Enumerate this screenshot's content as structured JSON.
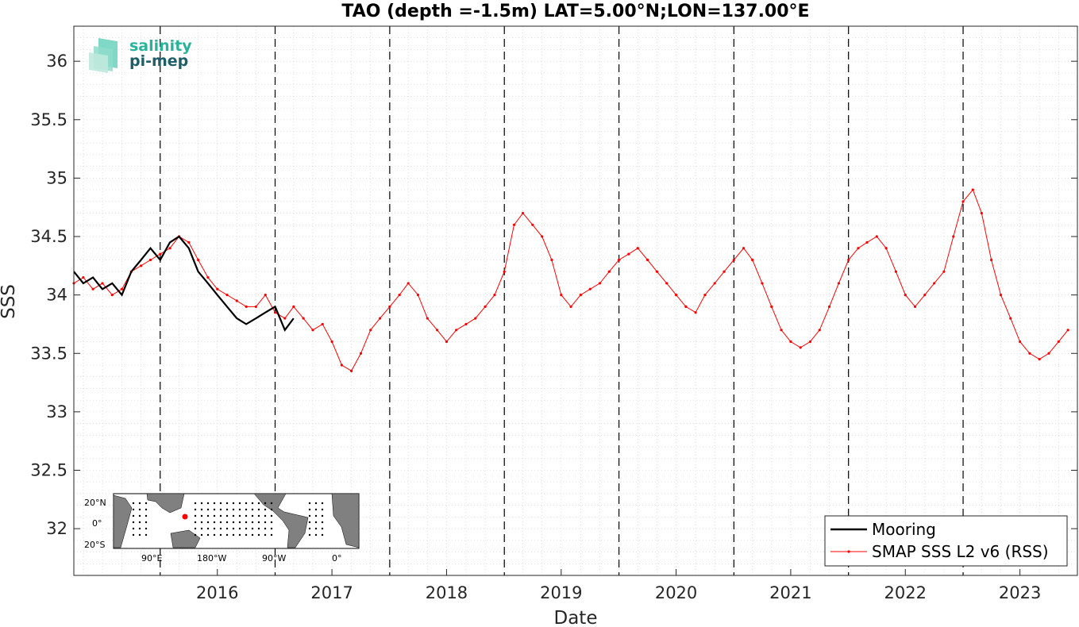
{
  "chart_data": {
    "type": "line",
    "title": "TAO (depth =-1.5m) LAT=5.00°N;LON=137.00°E",
    "xlabel": "Date",
    "ylabel": "SSS",
    "xlim": [
      "2015-04-01",
      "2023-12-31"
    ],
    "ylim": [
      31.6,
      36.3
    ],
    "x_ticks": [
      "2016",
      "2017",
      "2018",
      "2019",
      "2020",
      "2021",
      "2022",
      "2023"
    ],
    "y_ticks": [
      "32",
      "32.5",
      "33",
      "33.5",
      "34",
      "34.5",
      "35",
      "35.5",
      "36"
    ],
    "year_boundaries": [
      "2016-01-01",
      "2017-01-01",
      "2018-01-01",
      "2019-01-01",
      "2020-01-01",
      "2021-01-01",
      "2022-01-01",
      "2023-01-01"
    ],
    "grid": "minor dotted",
    "legend_position": "bottom-right",
    "series": [
      {
        "name": "Mooring",
        "color": "#000000",
        "style": "thick line",
        "x": [
          "2015-04-01",
          "2015-05-01",
          "2015-06-01",
          "2015-07-01",
          "2015-08-01",
          "2015-09-01",
          "2015-10-01",
          "2015-11-01",
          "2015-12-01",
          "2016-01-01",
          "2016-02-01",
          "2016-03-01",
          "2016-04-01",
          "2016-05-01",
          "2016-06-01",
          "2016-07-01",
          "2016-08-01",
          "2016-09-01",
          "2016-10-01",
          "2016-11-01",
          "2016-12-01",
          "2017-01-01",
          "2017-02-01",
          "2017-03-01"
        ],
        "y": [
          34.2,
          34.1,
          34.15,
          34.05,
          34.1,
          34.0,
          34.2,
          34.3,
          34.4,
          34.3,
          34.45,
          34.5,
          34.4,
          34.2,
          34.1,
          34.0,
          33.9,
          33.8,
          33.75,
          33.8,
          33.85,
          33.9,
          33.7,
          33.8
        ]
      },
      {
        "name": "SMAP SSS L2 v6 (RSS)",
        "color": "#ff0000",
        "style": "thin line with dot markers",
        "x": [
          "2015-04-01",
          "2015-05-01",
          "2015-06-01",
          "2015-07-01",
          "2015-08-01",
          "2015-09-01",
          "2015-10-01",
          "2015-11-01",
          "2015-12-01",
          "2016-01-01",
          "2016-02-01",
          "2016-03-01",
          "2016-04-01",
          "2016-05-01",
          "2016-06-01",
          "2016-07-01",
          "2016-08-01",
          "2016-09-01",
          "2016-10-01",
          "2016-11-01",
          "2016-12-01",
          "2017-01-01",
          "2017-02-01",
          "2017-03-01",
          "2017-04-01",
          "2017-05-01",
          "2017-06-01",
          "2017-07-01",
          "2017-08-01",
          "2017-09-01",
          "2017-10-01",
          "2017-11-01",
          "2017-12-01",
          "2018-01-01",
          "2018-02-01",
          "2018-03-01",
          "2018-04-01",
          "2018-05-01",
          "2018-06-01",
          "2018-07-01",
          "2018-08-01",
          "2018-09-01",
          "2018-10-01",
          "2018-11-01",
          "2018-12-01",
          "2019-01-01",
          "2019-02-01",
          "2019-03-01",
          "2019-04-01",
          "2019-05-01",
          "2019-06-01",
          "2019-07-01",
          "2019-08-01",
          "2019-09-01",
          "2019-10-01",
          "2019-11-01",
          "2019-12-01",
          "2020-01-01",
          "2020-02-01",
          "2020-03-01",
          "2020-04-01",
          "2020-05-01",
          "2020-06-01",
          "2020-07-01",
          "2020-08-01",
          "2020-09-01",
          "2020-10-01",
          "2020-11-01",
          "2020-12-01",
          "2021-01-01",
          "2021-02-01",
          "2021-03-01",
          "2021-04-01",
          "2021-05-01",
          "2021-06-01",
          "2021-07-01",
          "2021-08-01",
          "2021-09-01",
          "2021-10-01",
          "2021-11-01",
          "2021-12-01",
          "2022-01-01",
          "2022-02-01",
          "2022-03-01",
          "2022-04-01",
          "2022-05-01",
          "2022-06-01",
          "2022-07-01",
          "2022-08-01",
          "2022-09-01",
          "2022-10-01",
          "2022-11-01",
          "2022-12-01",
          "2023-01-01",
          "2023-02-01",
          "2023-03-01",
          "2023-04-01",
          "2023-05-01",
          "2023-06-01",
          "2023-07-01",
          "2023-08-01",
          "2023-09-01",
          "2023-10-01",
          "2023-11-01",
          "2023-12-01"
        ],
        "y": [
          34.1,
          34.15,
          34.05,
          34.1,
          34.0,
          34.05,
          34.2,
          34.25,
          34.3,
          34.35,
          34.4,
          34.5,
          34.45,
          34.3,
          34.15,
          34.05,
          34.0,
          33.95,
          33.9,
          33.9,
          34.0,
          33.85,
          33.8,
          33.9,
          33.8,
          33.7,
          33.75,
          33.6,
          33.4,
          33.35,
          33.5,
          33.7,
          33.8,
          33.9,
          34.0,
          34.1,
          34.0,
          33.8,
          33.7,
          33.6,
          33.7,
          33.75,
          33.8,
          33.9,
          34.0,
          34.2,
          34.6,
          34.7,
          34.6,
          34.5,
          34.3,
          34.0,
          33.9,
          34.0,
          34.05,
          34.1,
          34.2,
          34.3,
          34.35,
          34.4,
          34.3,
          34.2,
          34.1,
          34.0,
          33.9,
          33.85,
          34.0,
          34.1,
          34.2,
          34.3,
          34.4,
          34.3,
          34.1,
          33.9,
          33.7,
          33.6,
          33.55,
          33.6,
          33.7,
          33.9,
          34.1,
          34.3,
          34.4,
          34.45,
          34.5,
          34.4,
          34.2,
          34.0,
          33.9,
          34.0,
          34.1,
          34.2,
          34.5,
          34.8,
          34.9,
          34.7,
          34.3,
          34.0,
          33.8,
          33.6,
          33.5,
          33.45,
          33.5,
          33.6,
          33.7
        ]
      }
    ],
    "annotations": {
      "logo": [
        "salinity",
        "pi-mep"
      ],
      "inset_map": {
        "y_labels": [
          "20°N",
          "0°",
          "20°S"
        ],
        "x_labels": [
          "90°E",
          "180°W",
          "90°W",
          "0°"
        ]
      }
    }
  }
}
